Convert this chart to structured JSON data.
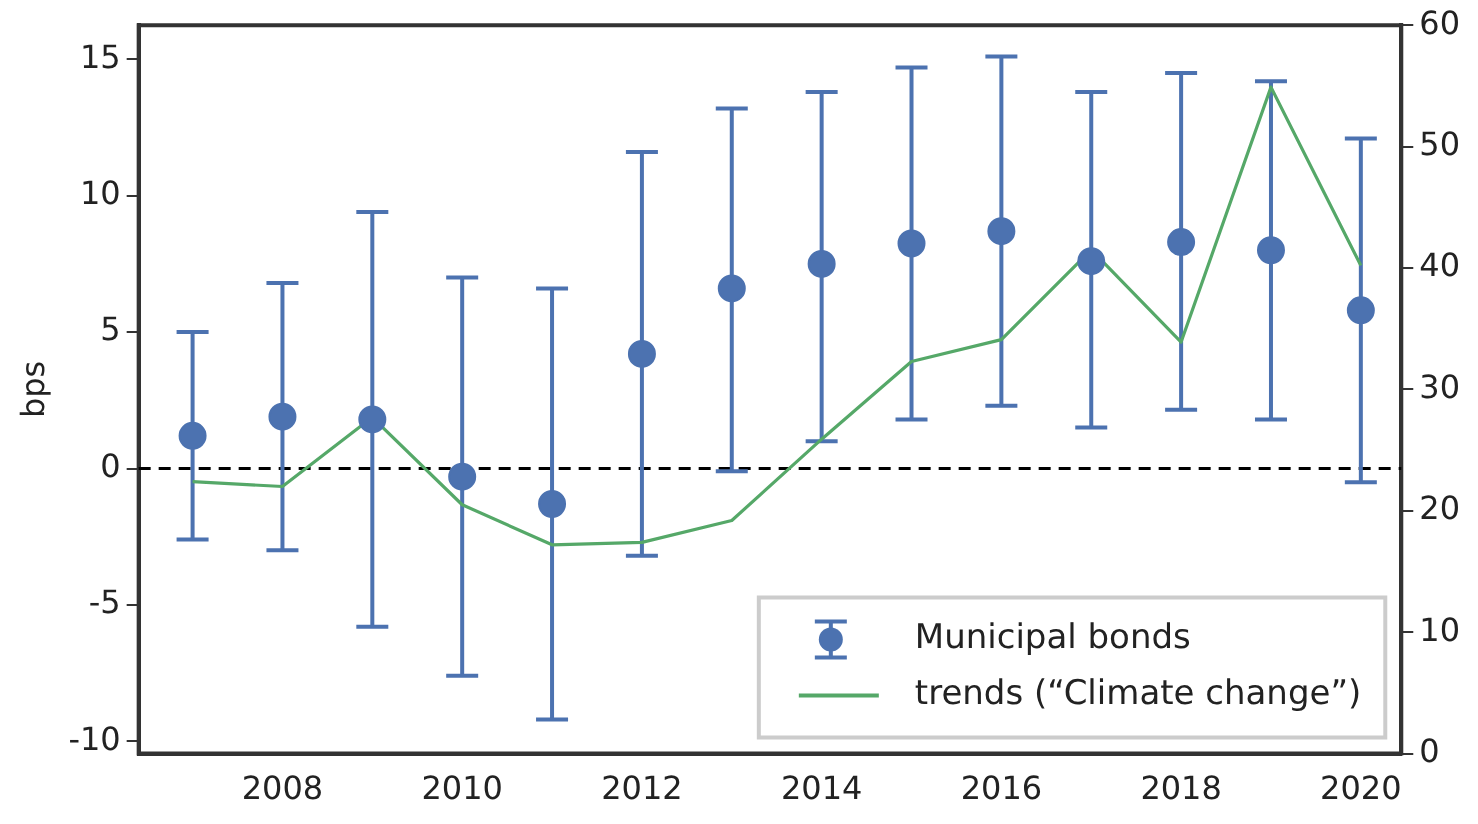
{
  "chart_data": {
    "type": "scatter",
    "ylabel": "bps",
    "x": [
      2007,
      2008,
      2009,
      2010,
      2011,
      2012,
      2013,
      2014,
      2015,
      2016,
      2017,
      2018,
      2019,
      2020
    ],
    "xlim": [
      2006.4,
      2020.45
    ],
    "xticks": [
      2008,
      2010,
      2012,
      2014,
      2016,
      2018,
      2020
    ],
    "ylim": [
      -10.45,
      16.25
    ],
    "yticks": [
      -10,
      -5,
      0,
      5,
      10,
      15
    ],
    "y2lim": [
      0,
      60
    ],
    "y2ticks": [
      0,
      10,
      20,
      30,
      40,
      50,
      60
    ],
    "series": [
      {
        "name": "Municipal bonds",
        "marker": "circle",
        "color": "#4c72b0",
        "values": [
          1.2,
          1.9,
          1.8,
          -0.3,
          -1.3,
          4.2,
          6.6,
          7.5,
          8.25,
          8.7,
          7.6,
          8.3,
          8.0,
          5.8
        ],
        "errors": [
          [
            -2.6,
            5.0
          ],
          [
            -3.0,
            6.8
          ],
          [
            -5.8,
            9.4
          ],
          [
            -7.6,
            7.0
          ],
          [
            -9.2,
            6.6
          ],
          [
            -3.2,
            11.6
          ],
          [
            -0.1,
            13.2
          ],
          [
            1.0,
            13.8
          ],
          [
            1.8,
            14.7
          ],
          [
            2.3,
            15.1
          ],
          [
            1.5,
            13.8
          ],
          [
            2.15,
            14.5
          ],
          [
            1.8,
            14.2
          ],
          [
            -0.5,
            12.1
          ]
        ]
      },
      {
        "name": "trends (“Climate change”)",
        "type": "line",
        "marker": "none",
        "axis": "y2",
        "color": "#55a868",
        "values": [
          22.4,
          22.0,
          27.7,
          20.5,
          17.2,
          17.4,
          19.2,
          25.9,
          32.3,
          34.1,
          41.5,
          33.9,
          54.9,
          40.2
        ]
      }
    ],
    "ref_lines": [
      {
        "axis": "y",
        "value": 0,
        "color": "#000000",
        "line_style": "dashed"
      }
    ],
    "grid": false,
    "legend": "bottom right"
  }
}
